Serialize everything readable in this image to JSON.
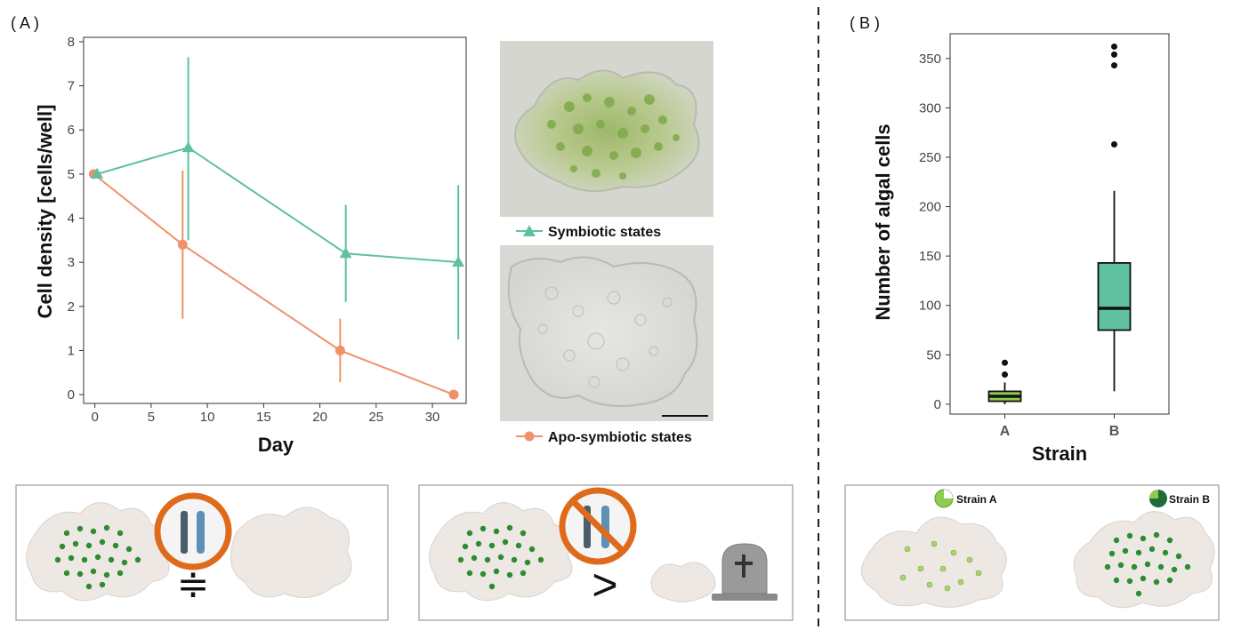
{
  "panels": {
    "a_label": "( A )",
    "b_label": "( B )"
  },
  "chart_data": [
    {
      "type": "line",
      "xlabel": "Day",
      "ylabel": "Cell density [cells/well]",
      "xlim": [
        -1,
        33
      ],
      "ylim": [
        -0.2,
        8.1
      ],
      "xticks": [
        "0",
        "5",
        "10",
        "15",
        "20",
        "25",
        "30"
      ],
      "yticks": [
        "0",
        "1",
        "2",
        "3",
        "4",
        "5",
        "6",
        "7",
        "8"
      ],
      "grid": false,
      "colors": {
        "symbiotic": "#5fc1a0",
        "apo": "#f0916a"
      },
      "series": [
        {
          "name": "Symbiotic states",
          "marker": "triangle",
          "x": [
            0.2,
            8.3,
            22.3,
            32.3
          ],
          "y": [
            5.0,
            5.6,
            3.2,
            3.0
          ],
          "err_low": [
            5.0,
            3.5,
            2.1,
            1.25
          ],
          "err_high": [
            5.0,
            7.65,
            4.3,
            4.75
          ]
        },
        {
          "name": "Apo-symbiotic states",
          "marker": "circle",
          "x": [
            -0.1,
            7.8,
            21.8,
            31.9
          ],
          "y": [
            5.0,
            3.4,
            1.0,
            0.0
          ],
          "err_low": [
            5.0,
            1.72,
            0.28,
            0.0
          ],
          "err_high": [
            5.0,
            5.08,
            1.72,
            0.0
          ]
        }
      ]
    },
    {
      "type": "box",
      "xlabel": "Strain",
      "ylabel": "Number of algal cells",
      "ylim": [
        -10,
        375
      ],
      "yticks": [
        "0",
        "50",
        "100",
        "150",
        "200",
        "250",
        "300",
        "350"
      ],
      "categories": [
        "A",
        "B"
      ],
      "grid": false,
      "boxes": [
        {
          "category": "A",
          "fill": "#8dcc4e",
          "q1": 3,
          "median": 8,
          "q3": 13,
          "whisker_low": 0,
          "whisker_high": 22,
          "outliers": [
            30,
            42
          ]
        },
        {
          "category": "B",
          "fill": "#5fc1a0",
          "q1": 75,
          "median": 97,
          "q3": 143,
          "whisker_low": 13,
          "whisker_high": 216,
          "outliers": [
            263,
            343,
            354,
            362
          ]
        }
      ]
    }
  ],
  "legend": {
    "symbiotic": "Symbiotic states",
    "apo": "Apo-symbiotic states"
  },
  "strain_labels": {
    "a": "Strain A",
    "b": "Strain B"
  },
  "symbols": {
    "approx": "≑",
    "greater": ">"
  }
}
